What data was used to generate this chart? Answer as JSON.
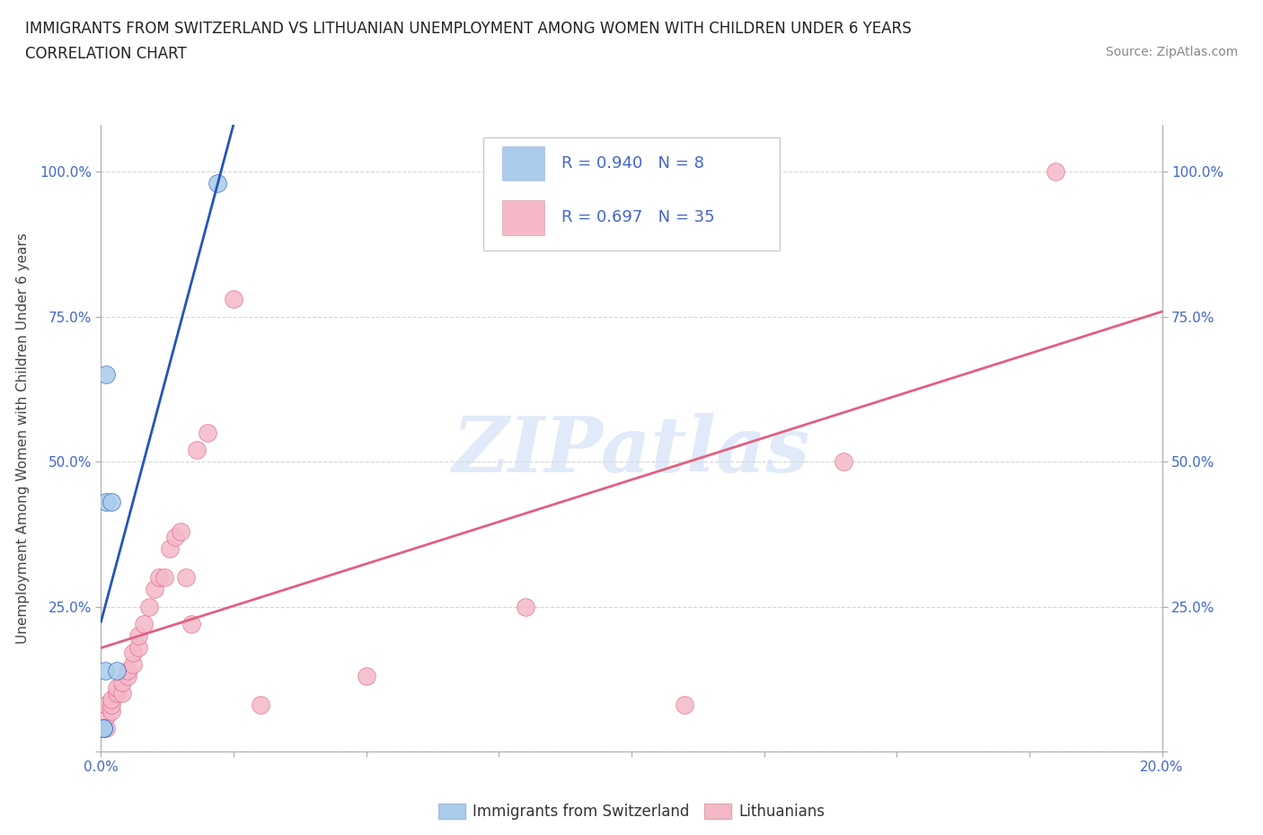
{
  "title_line1": "IMMIGRANTS FROM SWITZERLAND VS LITHUANIAN UNEMPLOYMENT AMONG WOMEN WITH CHILDREN UNDER 6 YEARS",
  "title_line2": "CORRELATION CHART",
  "source": "Source: ZipAtlas.com",
  "ylabel": "Unemployment Among Women with Children Under 6 years",
  "xlim": [
    0.0,
    0.2
  ],
  "ylim": [
    0.0,
    1.08
  ],
  "xtick_values": [
    0.0,
    0.025,
    0.05,
    0.075,
    0.1,
    0.125,
    0.15,
    0.175,
    0.2
  ],
  "xtick_labels": [
    "0.0%",
    "",
    "",
    "",
    "",
    "",
    "",
    "",
    "20.0%"
  ],
  "ytick_values": [
    0.0,
    0.25,
    0.5,
    0.75,
    1.0
  ],
  "ytick_labels": [
    "",
    "25.0%",
    "50.0%",
    "75.0%",
    "100.0%"
  ],
  "blue_x": [
    0.0005,
    0.0005,
    0.0008,
    0.001,
    0.001,
    0.002,
    0.003,
    0.022
  ],
  "blue_y": [
    0.04,
    0.04,
    0.14,
    0.43,
    0.65,
    0.43,
    0.14,
    0.98
  ],
  "pink_x": [
    0.001,
    0.001,
    0.001,
    0.002,
    0.002,
    0.002,
    0.003,
    0.003,
    0.004,
    0.004,
    0.005,
    0.005,
    0.006,
    0.006,
    0.007,
    0.007,
    0.008,
    0.009,
    0.01,
    0.011,
    0.012,
    0.013,
    0.014,
    0.015,
    0.016,
    0.017,
    0.018,
    0.02,
    0.025,
    0.03,
    0.05,
    0.08,
    0.11,
    0.14,
    0.18
  ],
  "pink_y": [
    0.04,
    0.06,
    0.08,
    0.07,
    0.08,
    0.09,
    0.1,
    0.11,
    0.1,
    0.12,
    0.13,
    0.14,
    0.15,
    0.17,
    0.18,
    0.2,
    0.22,
    0.25,
    0.28,
    0.3,
    0.3,
    0.35,
    0.37,
    0.38,
    0.3,
    0.22,
    0.52,
    0.55,
    0.78,
    0.08,
    0.13,
    0.25,
    0.08,
    0.5,
    1.0
  ],
  "blue_color": "#a8ccea",
  "pink_color": "#f4b8c8",
  "blue_line_color": "#2255bb",
  "pink_line_color": "#e06080",
  "R_blue": "0.940",
  "N_blue": "8",
  "R_pink": "0.697",
  "N_pink": "35",
  "legend_label_blue": "Immigrants from Switzerland",
  "legend_label_pink": "Lithuanians",
  "watermark_text": "ZIPatlas",
  "background_color": "#ffffff",
  "title_fontsize": 12,
  "axis_label_fontsize": 11,
  "tick_fontsize": 11,
  "legend_fontsize": 13,
  "source_fontsize": 10,
  "tick_color": "#4466cc"
}
